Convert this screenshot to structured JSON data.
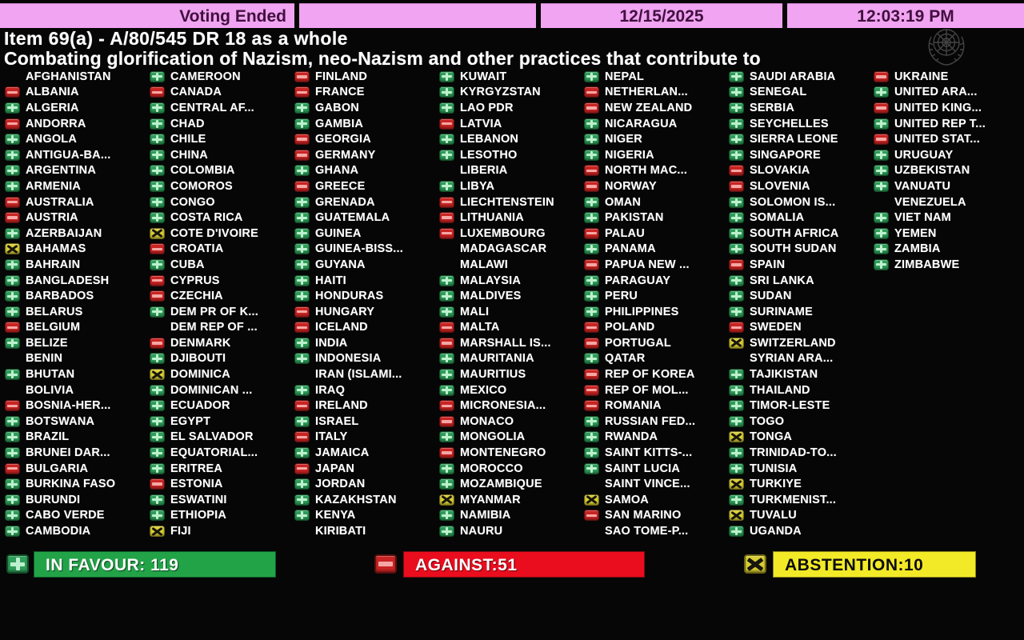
{
  "header": {
    "status": "Voting Ended",
    "date": "12/15/2025",
    "time": "12:03:19 PM",
    "bar_color": "#f1a4f1",
    "text_color": "#40103f"
  },
  "title": {
    "line1": "Item 69(a) - A/80/545 DR 18 as a whole",
    "line2": "Combating glorification of Nazism, neo-Nazism and other practices that contribute to"
  },
  "legend": {
    "Y": "in favour (green plus icon)",
    "N": "against (red minus icon)",
    "A": "abstention (yellow x icon)",
    "": "no vote shown"
  },
  "vote_colors": {
    "in_favour_icon": "#2f9c59",
    "against_icon": "#c82423",
    "abstention_icon": "#d9cd33"
  },
  "board": {
    "columns": [
      [
        [
          "AFGHANISTAN",
          ""
        ],
        [
          "ALBANIA",
          "N"
        ],
        [
          "ALGERIA",
          "Y"
        ],
        [
          "ANDORRA",
          "N"
        ],
        [
          "ANGOLA",
          "Y"
        ],
        [
          "ANTIGUA-BA...",
          "Y"
        ],
        [
          "ARGENTINA",
          "Y"
        ],
        [
          "ARMENIA",
          "Y"
        ],
        [
          "AUSTRALIA",
          "N"
        ],
        [
          "AUSTRIA",
          "N"
        ],
        [
          "AZERBAIJAN",
          "Y"
        ],
        [
          "BAHAMAS",
          "A"
        ],
        [
          "BAHRAIN",
          "Y"
        ],
        [
          "BANGLADESH",
          "Y"
        ],
        [
          "BARBADOS",
          "Y"
        ],
        [
          "BELARUS",
          "Y"
        ],
        [
          "BELGIUM",
          "N"
        ],
        [
          "BELIZE",
          "Y"
        ],
        [
          "BENIN",
          ""
        ],
        [
          "BHUTAN",
          "Y"
        ],
        [
          "BOLIVIA",
          ""
        ],
        [
          "BOSNIA-HER...",
          "N"
        ],
        [
          "BOTSWANA",
          "Y"
        ],
        [
          "BRAZIL",
          "Y"
        ],
        [
          "BRUNEI DAR...",
          "Y"
        ],
        [
          "BULGARIA",
          "N"
        ],
        [
          "BURKINA FASO",
          "Y"
        ],
        [
          "BURUNDI",
          "Y"
        ],
        [
          "CABO VERDE",
          "Y"
        ],
        [
          "CAMBODIA",
          "Y"
        ]
      ],
      [
        [
          "CAMEROON",
          "Y"
        ],
        [
          "CANADA",
          "N"
        ],
        [
          "CENTRAL AF...",
          "Y"
        ],
        [
          "CHAD",
          "Y"
        ],
        [
          "CHILE",
          "Y"
        ],
        [
          "CHINA",
          "Y"
        ],
        [
          "COLOMBIA",
          "Y"
        ],
        [
          "COMOROS",
          "Y"
        ],
        [
          "CONGO",
          "Y"
        ],
        [
          "COSTA RICA",
          "Y"
        ],
        [
          "COTE D'IVOIRE",
          "A"
        ],
        [
          "CROATIA",
          "N"
        ],
        [
          "CUBA",
          "Y"
        ],
        [
          "CYPRUS",
          "N"
        ],
        [
          "CZECHIA",
          "N"
        ],
        [
          "DEM PR OF K...",
          "Y"
        ],
        [
          "DEM REP OF ...",
          ""
        ],
        [
          "DENMARK",
          "N"
        ],
        [
          "DJIBOUTI",
          "Y"
        ],
        [
          "DOMINICA",
          "A"
        ],
        [
          "DOMINICAN ...",
          "Y"
        ],
        [
          "ECUADOR",
          "Y"
        ],
        [
          "EGYPT",
          "Y"
        ],
        [
          "EL SALVADOR",
          "Y"
        ],
        [
          "EQUATORIAL...",
          "Y"
        ],
        [
          "ERITREA",
          "Y"
        ],
        [
          "ESTONIA",
          "N"
        ],
        [
          "ESWATINI",
          "Y"
        ],
        [
          "ETHIOPIA",
          "Y"
        ],
        [
          "FIJI",
          "A"
        ]
      ],
      [
        [
          "FINLAND",
          "N"
        ],
        [
          "FRANCE",
          "N"
        ],
        [
          "GABON",
          "Y"
        ],
        [
          "GAMBIA",
          "Y"
        ],
        [
          "GEORGIA",
          "N"
        ],
        [
          "GERMANY",
          "N"
        ],
        [
          "GHANA",
          "Y"
        ],
        [
          "GREECE",
          "N"
        ],
        [
          "GRENADA",
          "Y"
        ],
        [
          "GUATEMALA",
          "Y"
        ],
        [
          "GUINEA",
          "Y"
        ],
        [
          "GUINEA-BISS...",
          "Y"
        ],
        [
          "GUYANA",
          "Y"
        ],
        [
          "HAITI",
          "Y"
        ],
        [
          "HONDURAS",
          "Y"
        ],
        [
          "HUNGARY",
          "N"
        ],
        [
          "ICELAND",
          "N"
        ],
        [
          "INDIA",
          "Y"
        ],
        [
          "INDONESIA",
          "Y"
        ],
        [
          "IRAN (ISLAMI...",
          ""
        ],
        [
          "IRAQ",
          "Y"
        ],
        [
          "IRELAND",
          "N"
        ],
        [
          "ISRAEL",
          "Y"
        ],
        [
          "ITALY",
          "N"
        ],
        [
          "JAMAICA",
          "Y"
        ],
        [
          "JAPAN",
          "N"
        ],
        [
          "JORDAN",
          "Y"
        ],
        [
          "KAZAKHSTAN",
          "Y"
        ],
        [
          "KENYA",
          "Y"
        ],
        [
          "KIRIBATI",
          ""
        ]
      ],
      [
        [
          "KUWAIT",
          "Y"
        ],
        [
          "KYRGYZSTAN",
          "Y"
        ],
        [
          "LAO PDR",
          "Y"
        ],
        [
          "LATVIA",
          "N"
        ],
        [
          "LEBANON",
          "Y"
        ],
        [
          "LESOTHO",
          "Y"
        ],
        [
          "LIBERIA",
          ""
        ],
        [
          "LIBYA",
          "Y"
        ],
        [
          "LIECHTENSTEIN",
          "N"
        ],
        [
          "LITHUANIA",
          "N"
        ],
        [
          "LUXEMBOURG",
          "N"
        ],
        [
          "MADAGASCAR",
          ""
        ],
        [
          "MALAWI",
          ""
        ],
        [
          "MALAYSIA",
          "Y"
        ],
        [
          "MALDIVES",
          "Y"
        ],
        [
          "MALI",
          "Y"
        ],
        [
          "MALTA",
          "N"
        ],
        [
          "MARSHALL IS...",
          "N"
        ],
        [
          "MAURITANIA",
          "Y"
        ],
        [
          "MAURITIUS",
          "Y"
        ],
        [
          "MEXICO",
          "Y"
        ],
        [
          "MICRONESIA...",
          "N"
        ],
        [
          "MONACO",
          "N"
        ],
        [
          "MONGOLIA",
          "Y"
        ],
        [
          "MONTENEGRO",
          "N"
        ],
        [
          "MOROCCO",
          "Y"
        ],
        [
          "MOZAMBIQUE",
          "Y"
        ],
        [
          "MYANMAR",
          "A"
        ],
        [
          "NAMIBIA",
          "Y"
        ],
        [
          "NAURU",
          "Y"
        ]
      ],
      [
        [
          "NEPAL",
          "Y"
        ],
        [
          "NETHERLAN...",
          "N"
        ],
        [
          "NEW ZEALAND",
          "N"
        ],
        [
          "NICARAGUA",
          "Y"
        ],
        [
          "NIGER",
          "Y"
        ],
        [
          "NIGERIA",
          "Y"
        ],
        [
          "NORTH MAC...",
          "N"
        ],
        [
          "NORWAY",
          "N"
        ],
        [
          "OMAN",
          "Y"
        ],
        [
          "PAKISTAN",
          "Y"
        ],
        [
          "PALAU",
          "N"
        ],
        [
          "PANAMA",
          "Y"
        ],
        [
          "PAPUA NEW ...",
          "N"
        ],
        [
          "PARAGUAY",
          "Y"
        ],
        [
          "PERU",
          "Y"
        ],
        [
          "PHILIPPINES",
          "Y"
        ],
        [
          "POLAND",
          "N"
        ],
        [
          "PORTUGAL",
          "N"
        ],
        [
          "QATAR",
          "Y"
        ],
        [
          "REP OF KOREA",
          "N"
        ],
        [
          "REP OF MOL...",
          "N"
        ],
        [
          "ROMANIA",
          "N"
        ],
        [
          "RUSSIAN FED...",
          "Y"
        ],
        [
          "RWANDA",
          "Y"
        ],
        [
          "SAINT KITTS-...",
          "Y"
        ],
        [
          "SAINT LUCIA",
          "Y"
        ],
        [
          "SAINT VINCE...",
          ""
        ],
        [
          "SAMOA",
          "A"
        ],
        [
          "SAN MARINO",
          "N"
        ],
        [
          "SAO TOME-P...",
          ""
        ]
      ],
      [
        [
          "SAUDI ARABIA",
          "Y"
        ],
        [
          "SENEGAL",
          "Y"
        ],
        [
          "SERBIA",
          "Y"
        ],
        [
          "SEYCHELLES",
          "Y"
        ],
        [
          "SIERRA LEONE",
          "Y"
        ],
        [
          "SINGAPORE",
          "Y"
        ],
        [
          "SLOVAKIA",
          "N"
        ],
        [
          "SLOVENIA",
          "N"
        ],
        [
          "SOLOMON IS...",
          "Y"
        ],
        [
          "SOMALIA",
          "Y"
        ],
        [
          "SOUTH AFRICA",
          "Y"
        ],
        [
          "SOUTH SUDAN",
          "Y"
        ],
        [
          "SPAIN",
          "N"
        ],
        [
          "SRI LANKA",
          "Y"
        ],
        [
          "SUDAN",
          "Y"
        ],
        [
          "SURINAME",
          "Y"
        ],
        [
          "SWEDEN",
          "N"
        ],
        [
          "SWITZERLAND",
          "A"
        ],
        [
          "SYRIAN ARA...",
          ""
        ],
        [
          "TAJIKISTAN",
          "Y"
        ],
        [
          "THAILAND",
          "Y"
        ],
        [
          "TIMOR-LESTE",
          "Y"
        ],
        [
          "TOGO",
          "Y"
        ],
        [
          "TONGA",
          "A"
        ],
        [
          "TRINIDAD-TO...",
          "Y"
        ],
        [
          "TUNISIA",
          "Y"
        ],
        [
          "TURKIYE",
          "A"
        ],
        [
          "TURKMENIST...",
          "Y"
        ],
        [
          "TUVALU",
          "A"
        ],
        [
          "UGANDA",
          "Y"
        ]
      ],
      [
        [
          "UKRAINE",
          "N"
        ],
        [
          "UNITED ARA...",
          "Y"
        ],
        [
          "UNITED KING...",
          "N"
        ],
        [
          "UNITED REP T...",
          "Y"
        ],
        [
          "UNITED STAT...",
          "N"
        ],
        [
          "URUGUAY",
          "Y"
        ],
        [
          "UZBEKISTAN",
          "Y"
        ],
        [
          "VANUATU",
          "Y"
        ],
        [
          "VENEZUELA",
          ""
        ],
        [
          "VIET NAM",
          "Y"
        ],
        [
          "YEMEN",
          "Y"
        ],
        [
          "ZAMBIA",
          "Y"
        ],
        [
          "ZIMBABWE",
          "Y"
        ]
      ]
    ]
  },
  "summary": {
    "in_favour": {
      "label": "IN FAVOUR: 119",
      "count": 119,
      "color": "#23a348"
    },
    "against": {
      "label": "AGAINST:51",
      "count": 51,
      "color": "#ea0d1e"
    },
    "abstention": {
      "label": "ABSTENTION:10",
      "count": 10,
      "color": "#f2ea27"
    }
  }
}
